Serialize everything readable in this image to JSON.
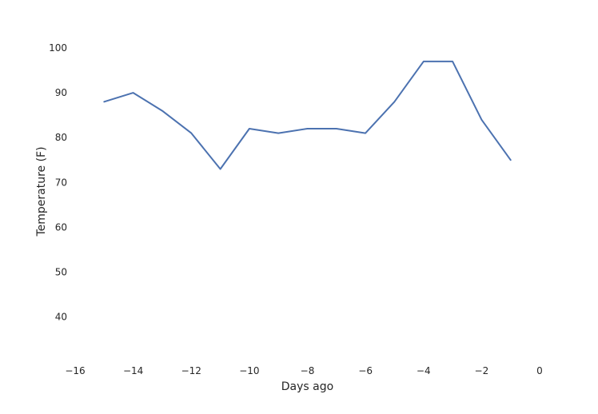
{
  "chart_data": {
    "type": "line",
    "title": "",
    "xlabel": "Days ago",
    "ylabel": "Temperature (F)",
    "xlim": [
      -16,
      0
    ],
    "ylim": [
      31,
      105
    ],
    "grid": false,
    "line_color": "#4c72b0",
    "xticks": [
      -16,
      -14,
      -12,
      -10,
      -8,
      -6,
      -4,
      -2,
      0
    ],
    "xtick_labels": [
      "−16",
      "−14",
      "−12",
      "−10",
      "−8",
      "−6",
      "−4",
      "−2",
      "0"
    ],
    "yticks": [
      40,
      50,
      60,
      70,
      80,
      90,
      100
    ],
    "ytick_labels": [
      "40",
      "50",
      "60",
      "70",
      "80",
      "90",
      "100"
    ],
    "series": [
      {
        "x": [
          -15,
          -14,
          -13,
          -12,
          -11,
          -10,
          -9,
          -8,
          -7,
          -6,
          -5,
          -4,
          -3,
          -2,
          -1
        ],
        "y": [
          88,
          90,
          86,
          81,
          73,
          82,
          81,
          82,
          82,
          81,
          88,
          97,
          97,
          84,
          75
        ]
      }
    ]
  }
}
